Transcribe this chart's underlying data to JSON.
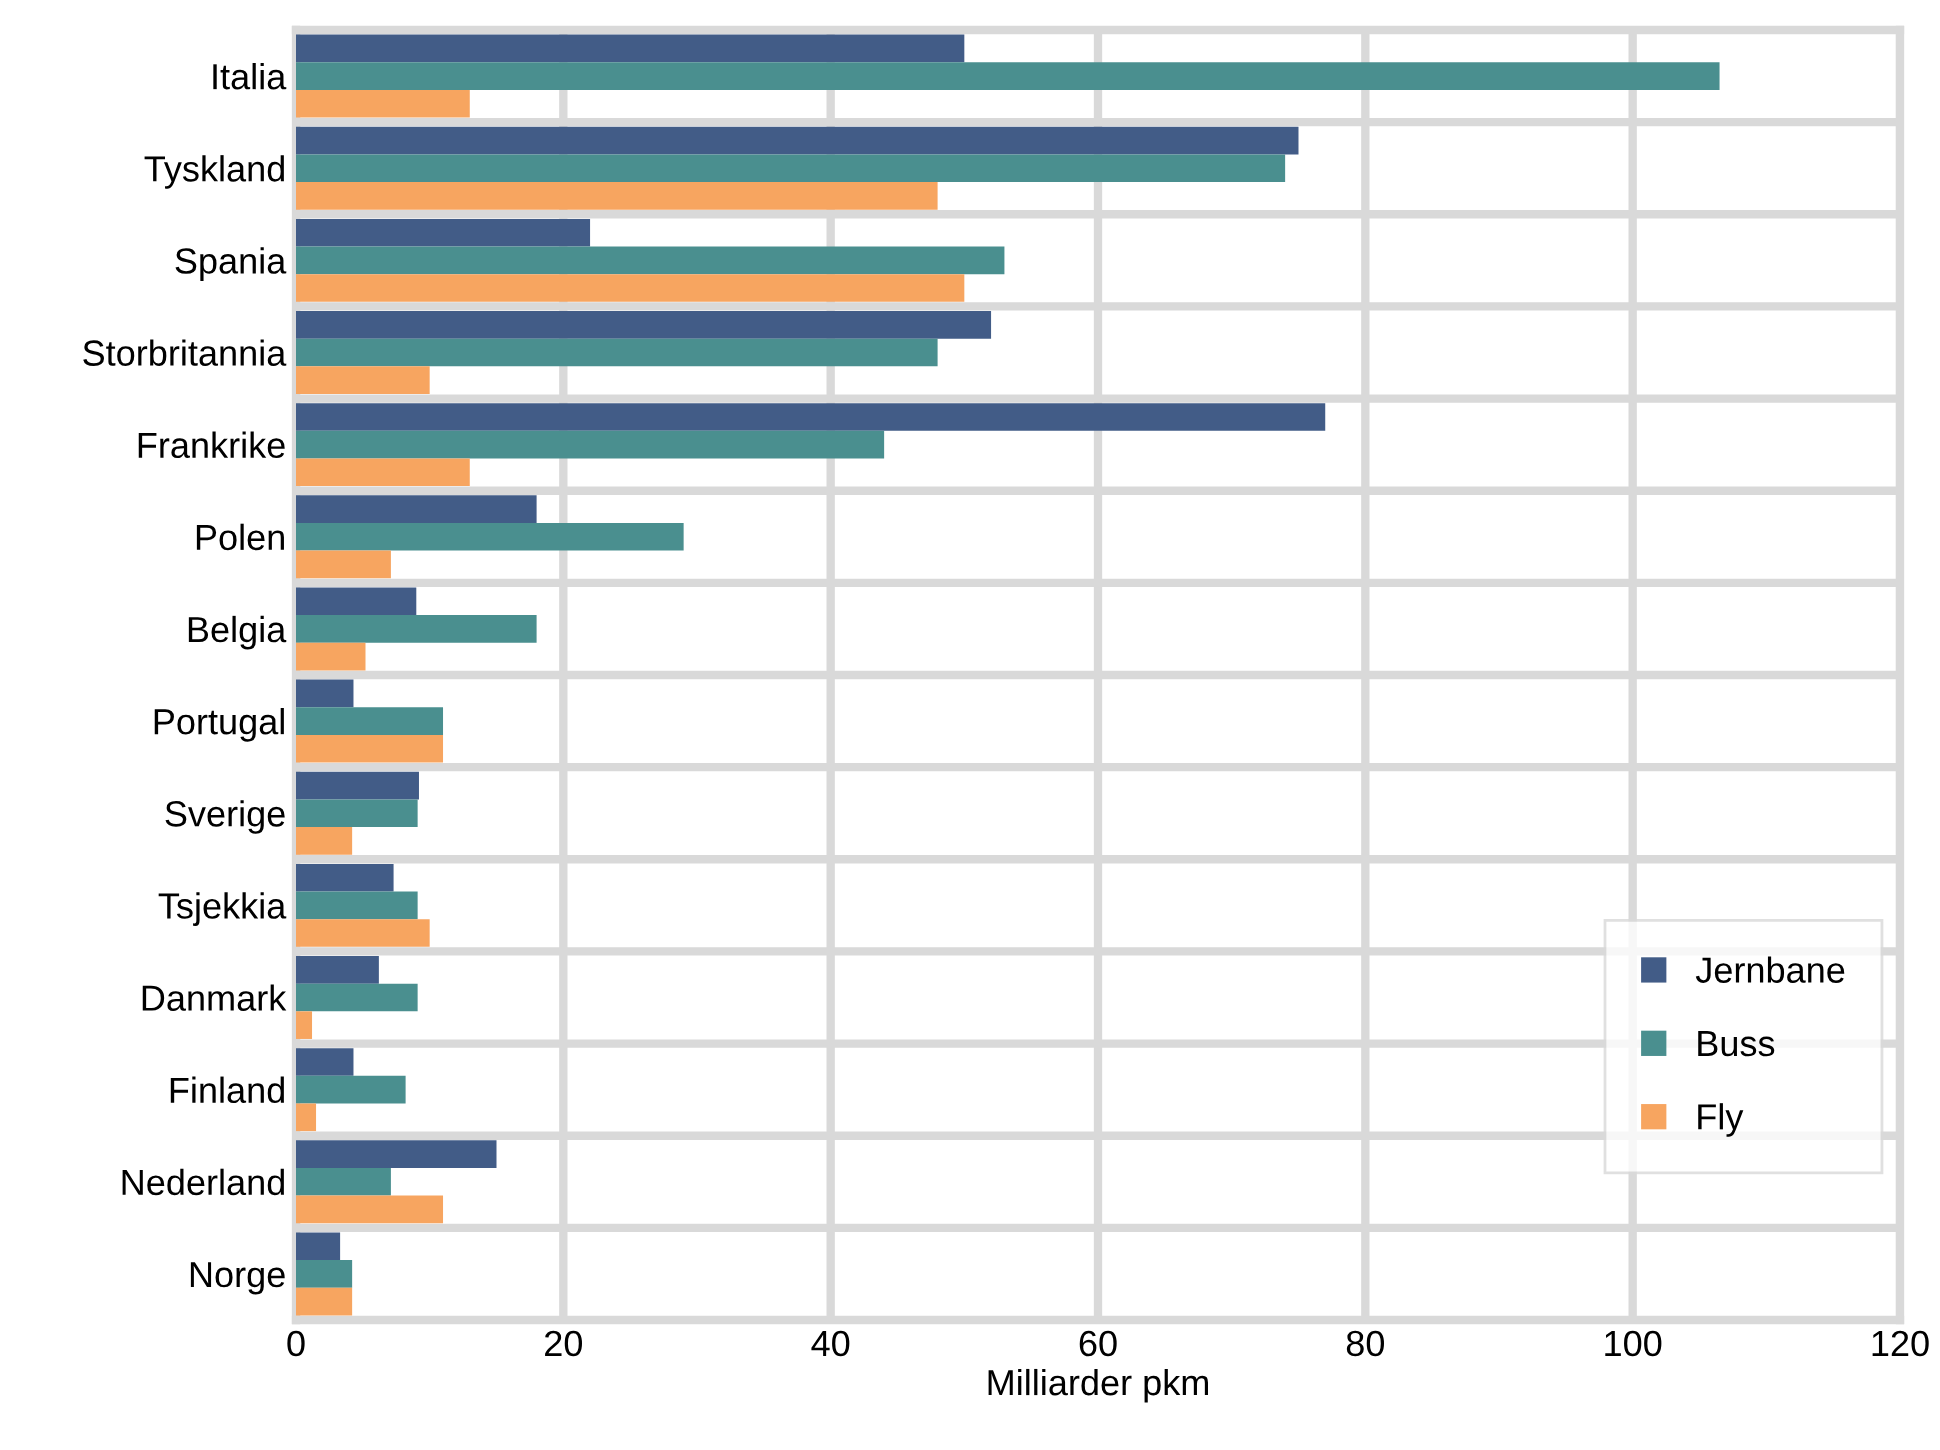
{
  "chart_data": {
    "type": "bar",
    "orientation": "horizontal",
    "xlabel": "Milliarder pkm",
    "categories": [
      "Italia",
      "Tyskland",
      "Spania",
      "Storbritannia",
      "Frankrike",
      "Polen",
      "Belgia",
      "Portugal",
      "Sverige",
      "Tsjekkia",
      "Danmark",
      "Finland",
      "Nederland",
      "Norge"
    ],
    "series": [
      {
        "name": "Jernbane",
        "color": "#425c87",
        "values": [
          50,
          75,
          22,
          52,
          77,
          18,
          9,
          4.3,
          9.2,
          7.3,
          6.2,
          4.3,
          15,
          3.3
        ]
      },
      {
        "name": "Buss",
        "color": "#4a8f8f",
        "values": [
          106.5,
          74,
          53,
          48,
          44,
          29,
          18,
          11,
          9.1,
          9.1,
          9.1,
          8.2,
          7.1,
          4.2
        ]
      },
      {
        "name": "Fly",
        "color": "#f7a560",
        "values": [
          13,
          48,
          50,
          10,
          13,
          7.1,
          5.2,
          11,
          4.2,
          10,
          1.2,
          1.5,
          11,
          4.2
        ]
      }
    ],
    "xlim": [
      0,
      120
    ],
    "xticks": [
      0,
      20,
      40,
      60,
      80,
      100,
      120
    ],
    "grid": true,
    "legend": "bottom right"
  }
}
